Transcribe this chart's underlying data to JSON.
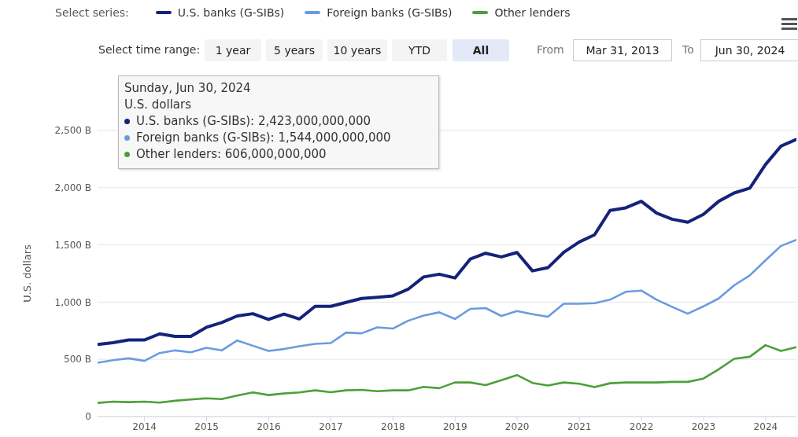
{
  "chart_data": {
    "type": "line",
    "ylabel": "U.S. dollars",
    "legend": "top left",
    "grid": "y",
    "marker": "none",
    "line_style": "solid",
    "x": [
      "2013-03-31",
      "2013-06-30",
      "2013-09-30",
      "2013-12-31",
      "2014-03-31",
      "2014-06-30",
      "2014-09-30",
      "2014-12-31",
      "2015-03-31",
      "2015-06-30",
      "2015-09-30",
      "2015-12-31",
      "2016-03-31",
      "2016-06-30",
      "2016-09-30",
      "2016-12-31",
      "2017-03-31",
      "2017-06-30",
      "2017-09-30",
      "2017-12-31",
      "2018-03-31",
      "2018-06-30",
      "2018-09-30",
      "2018-12-31",
      "2019-03-31",
      "2019-06-30",
      "2019-09-30",
      "2019-12-31",
      "2020-03-31",
      "2020-06-30",
      "2020-09-30",
      "2020-12-31",
      "2021-03-31",
      "2021-06-30",
      "2021-09-30",
      "2021-12-31",
      "2022-03-31",
      "2022-06-30",
      "2022-09-30",
      "2022-12-31",
      "2023-03-31",
      "2023-06-30",
      "2023-09-30",
      "2023-12-31",
      "2024-03-31",
      "2024-06-30"
    ],
    "series": [
      {
        "name": "U.S. banks (G-SIBs)",
        "color": "#14237a",
        "values": [
          630,
          645,
          670,
          669,
          723,
          700,
          700,
          780,
          821,
          879,
          899,
          849,
          895,
          853,
          963,
          963,
          998,
          1032,
          1043,
          1055,
          1113,
          1220,
          1244,
          1211,
          1376,
          1427,
          1395,
          1434,
          1273,
          1301,
          1434,
          1526,
          1588,
          1801,
          1824,
          1881,
          1778,
          1725,
          1698,
          1767,
          1881,
          1954,
          1996,
          2202,
          2363,
          2423
        ]
      },
      {
        "name": "Foreign banks (G-SIBs)",
        "color": "#6a9be0",
        "values": [
          470,
          493,
          509,
          487,
          555,
          578,
          562,
          601,
          578,
          665,
          619,
          573,
          590,
          615,
          635,
          642,
          734,
          727,
          780,
          769,
          837,
          883,
          911,
          853,
          941,
          948,
          879,
          922,
          895,
          872,
          986,
          986,
          991,
          1021,
          1090,
          1101,
          1021,
          959,
          899,
          963,
          1032,
          1147,
          1234,
          1365,
          1491,
          1544
        ]
      },
      {
        "name": "Other lenders",
        "color": "#4ca03a",
        "values": [
          119,
          131,
          126,
          131,
          122,
          138,
          149,
          160,
          153,
          184,
          211,
          188,
          202,
          211,
          229,
          213,
          229,
          234,
          222,
          229,
          229,
          259,
          248,
          298,
          298,
          275,
          317,
          363,
          294,
          271,
          298,
          287,
          257,
          291,
          298,
          298,
          298,
          303,
          303,
          332,
          413,
          505,
          523,
          624,
          573,
          606
        ]
      }
    ],
    "xlim": [
      "2013-03-31",
      "2024-06-30"
    ],
    "xticks": [
      {
        "value": "2014-01-01",
        "label": "2014"
      },
      {
        "value": "2015-01-01",
        "label": "2015"
      },
      {
        "value": "2016-01-01",
        "label": "2016"
      },
      {
        "value": "2017-01-01",
        "label": "2017"
      },
      {
        "value": "2018-01-01",
        "label": "2018"
      },
      {
        "value": "2019-01-01",
        "label": "2019"
      },
      {
        "value": "2020-01-01",
        "label": "2020"
      },
      {
        "value": "2021-01-01",
        "label": "2021"
      },
      {
        "value": "2022-01-01",
        "label": "2022"
      },
      {
        "value": "2023-01-01",
        "label": "2023"
      },
      {
        "value": "2024-01-01",
        "label": "2024"
      }
    ],
    "ylim": [
      0,
      2500
    ],
    "yticks": [
      0,
      {
        "value": 500,
        "label": "500 B"
      },
      {
        "value": 1000,
        "label": "1,000 B"
      },
      {
        "value": 1500,
        "label": "1,500 B"
      },
      {
        "value": 2000,
        "label": "2,000 B"
      },
      {
        "value": 2500,
        "label": "2,500 B"
      }
    ],
    "annotations": [
      "Select series:",
      "Select time range:",
      "1 year",
      "5 years",
      "10 years",
      "YTD",
      "All",
      "From",
      "Mar 31, 2013",
      "To",
      "Jun 30, 2024",
      "Sunday, Jun 30, 2024",
      "U.S. dollars",
      "U.S. banks (G-SIBs): 2,423,000,000,000",
      "Foreign banks (G-SIBs): 1,544,000,000,000",
      "Other lenders: 606,000,000,000"
    ]
  }
}
